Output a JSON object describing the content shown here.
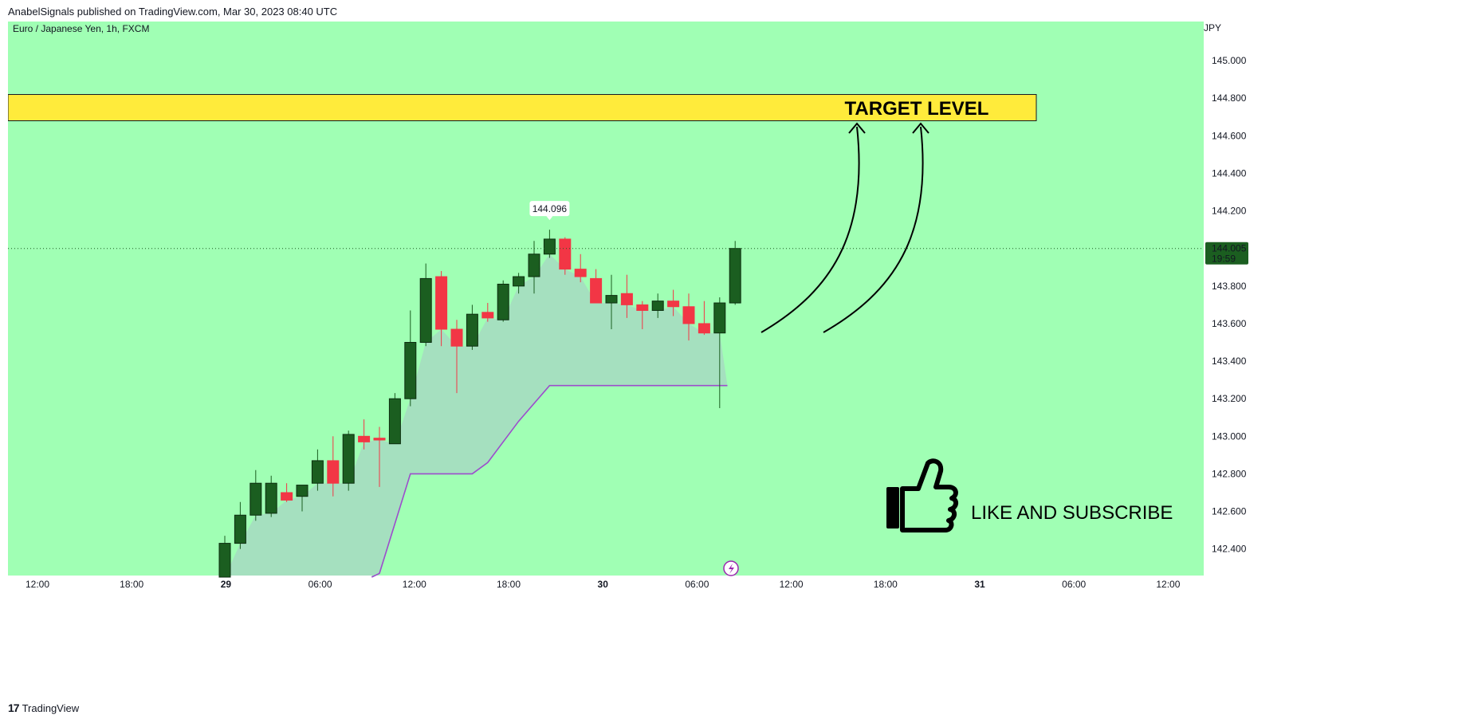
{
  "header": {
    "published_text": "AnabelSignals published on TradingView.com, Mar 30, 2023 08:40 UTC"
  },
  "symbol_label": "Euro / Japanese Yen, 1h, FXCM",
  "currency_label": "JPY",
  "footer": {
    "brand": "TradingView",
    "brand_mark": "17"
  },
  "colors": {
    "background": "#a0ffb4",
    "bull": "#1b5e20",
    "bear": "#f23645",
    "band_fill": "#a5dec0",
    "band_line": "#9c4dcc",
    "target_band": "#ffeb3b",
    "price_tag": "#1b5e20"
  },
  "price_tag": {
    "value": "144.005",
    "time": "19:59"
  },
  "high_marker": {
    "value": "144.096"
  },
  "annotations": {
    "target_label": "TARGET LEVEL",
    "subscribe_label": "LIKE AND SUBSCRIBE",
    "thumbs_up_icon": "thumbs-up-icon",
    "lightning_icon": "lightning-icon"
  },
  "chart_data": {
    "type": "candlestick",
    "title": "Euro / Japanese Yen, 1h, FXCM",
    "ylim": [
      142.25,
      145.2
    ],
    "y_ticks": [
      "145.000",
      "144.800",
      "144.600",
      "144.400",
      "144.200",
      "144.000",
      "143.800",
      "143.600",
      "143.400",
      "143.200",
      "143.000",
      "142.800",
      "142.600",
      "142.400"
    ],
    "y_tick_values": [
      145.0,
      144.8,
      144.6,
      144.4,
      144.2,
      144.0,
      143.8,
      143.6,
      143.4,
      143.2,
      143.0,
      142.8,
      142.6,
      142.4
    ],
    "x_ticks": [
      {
        "label": "12:00",
        "bold": false
      },
      {
        "label": "18:00",
        "bold": false
      },
      {
        "label": "29",
        "bold": true
      },
      {
        "label": "06:00",
        "bold": false
      },
      {
        "label": "12:00",
        "bold": false
      },
      {
        "label": "18:00",
        "bold": false
      },
      {
        "label": "30",
        "bold": true
      },
      {
        "label": "06:00",
        "bold": false
      },
      {
        "label": "12:00",
        "bold": false
      },
      {
        "label": "18:00",
        "bold": false
      },
      {
        "label": "31",
        "bold": true
      },
      {
        "label": "06:00",
        "bold": false
      },
      {
        "label": "12:00",
        "bold": false
      }
    ],
    "candles": [
      {
        "o": 142.25,
        "h": 142.47,
        "l": 142.25,
        "c": 142.43
      },
      {
        "o": 142.43,
        "h": 142.65,
        "l": 142.4,
        "c": 142.58
      },
      {
        "o": 142.58,
        "h": 142.82,
        "l": 142.55,
        "c": 142.75
      },
      {
        "o": 142.59,
        "h": 142.79,
        "l": 142.57,
        "c": 142.75
      },
      {
        "o": 142.7,
        "h": 142.75,
        "l": 142.65,
        "c": 142.66
      },
      {
        "o": 142.68,
        "h": 142.74,
        "l": 142.6,
        "c": 142.74
      },
      {
        "o": 142.75,
        "h": 142.93,
        "l": 142.71,
        "c": 142.87
      },
      {
        "o": 142.87,
        "h": 143.0,
        "l": 142.68,
        "c": 142.75
      },
      {
        "o": 142.75,
        "h": 143.03,
        "l": 142.71,
        "c": 143.01
      },
      {
        "o": 143.0,
        "h": 143.09,
        "l": 142.93,
        "c": 142.97
      },
      {
        "o": 142.99,
        "h": 143.05,
        "l": 142.73,
        "c": 142.98
      },
      {
        "o": 142.96,
        "h": 143.23,
        "l": 142.96,
        "c": 143.2
      },
      {
        "o": 143.2,
        "h": 143.67,
        "l": 143.16,
        "c": 143.5
      },
      {
        "o": 143.5,
        "h": 143.92,
        "l": 143.48,
        "c": 143.84
      },
      {
        "o": 143.85,
        "h": 143.88,
        "l": 143.48,
        "c": 143.57
      },
      {
        "o": 143.57,
        "h": 143.62,
        "l": 143.23,
        "c": 143.48
      },
      {
        "o": 143.48,
        "h": 143.7,
        "l": 143.46,
        "c": 143.65
      },
      {
        "o": 143.66,
        "h": 143.71,
        "l": 143.61,
        "c": 143.63
      },
      {
        "o": 143.62,
        "h": 143.83,
        "l": 143.61,
        "c": 143.81
      },
      {
        "o": 143.8,
        "h": 143.87,
        "l": 143.76,
        "c": 143.85
      },
      {
        "o": 143.85,
        "h": 144.04,
        "l": 143.76,
        "c": 143.97
      },
      {
        "o": 143.97,
        "h": 144.1,
        "l": 143.95,
        "c": 144.05
      },
      {
        "o": 144.05,
        "h": 144.06,
        "l": 143.86,
        "c": 143.89
      },
      {
        "o": 143.89,
        "h": 143.97,
        "l": 143.82,
        "c": 143.85
      },
      {
        "o": 143.84,
        "h": 143.89,
        "l": 143.71,
        "c": 143.71
      },
      {
        "o": 143.71,
        "h": 143.86,
        "l": 143.57,
        "c": 143.75
      },
      {
        "o": 143.76,
        "h": 143.86,
        "l": 143.63,
        "c": 143.7
      },
      {
        "o": 143.7,
        "h": 143.72,
        "l": 143.57,
        "c": 143.67
      },
      {
        "o": 143.67,
        "h": 143.76,
        "l": 143.63,
        "c": 143.72
      },
      {
        "o": 143.72,
        "h": 143.78,
        "l": 143.64,
        "c": 143.69
      },
      {
        "o": 143.69,
        "h": 143.76,
        "l": 143.51,
        "c": 143.6
      },
      {
        "o": 143.6,
        "h": 143.72,
        "l": 143.54,
        "c": 143.55
      },
      {
        "o": 143.55,
        "h": 143.74,
        "l": 143.15,
        "c": 143.71
      },
      {
        "o": 143.71,
        "h": 144.04,
        "l": 143.7,
        "c": 144.0
      }
    ],
    "trail_line": [
      {
        "i": 9.5,
        "v": 142.25
      },
      {
        "i": 10,
        "v": 142.27
      },
      {
        "i": 12,
        "v": 142.8
      },
      {
        "i": 16,
        "v": 142.8
      },
      {
        "i": 17,
        "v": 142.86
      },
      {
        "i": 19,
        "v": 143.08
      },
      {
        "i": 21,
        "v": 143.27
      },
      {
        "i": 32,
        "v": 143.27
      },
      {
        "i": 32.5,
        "v": 143.27
      }
    ],
    "target_band": [
      144.68,
      144.82
    ]
  }
}
